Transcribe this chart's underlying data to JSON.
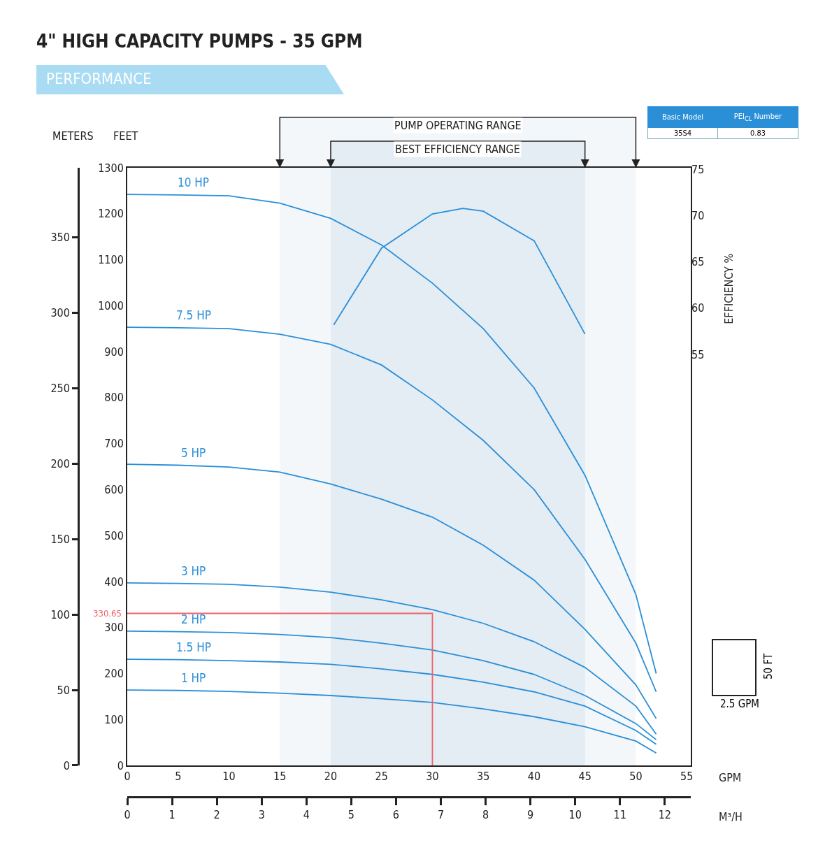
{
  "chart_data": {
    "type": "line",
    "title": "4\" HIGH CAPACITY PUMPS - 35 GPM",
    "subtitle": "PERFORMANCE",
    "xlabel": "GPM",
    "ylabel": "FEET",
    "y2label": "EFFICIENCY %",
    "y3label": "METERS",
    "x2label": "M³/H",
    "x": [
      0,
      5,
      10,
      15,
      20,
      25,
      30,
      35,
      40,
      45,
      50,
      52
    ],
    "series": [
      {
        "name": "10 HP",
        "color": "#2b8fd8",
        "values": [
          1242,
          1241,
          1239,
          1223,
          1190,
          1132,
          1049,
          950,
          821,
          631,
          372,
          200
        ]
      },
      {
        "name": "7.5 HP",
        "color": "#2b8fd8",
        "values": [
          953,
          952,
          950,
          938,
          916,
          871,
          795,
          707,
          600,
          448,
          266,
          160
        ]
      },
      {
        "name": "5 HP",
        "color": "#2b8fd8",
        "values": [
          655,
          653,
          649,
          638,
          612,
          579,
          540,
          479,
          403,
          296,
          175,
          102
        ]
      },
      {
        "name": "3 HP",
        "color": "#2b8fd8",
        "values": [
          397,
          396,
          394,
          388,
          377,
          360,
          339,
          309,
          269,
          213,
          129,
          68
        ]
      },
      {
        "name": "2 HP",
        "color": "#2b8fd8",
        "values": [
          292,
          291,
          289,
          285,
          278,
          266,
          251,
          228,
          198,
          152,
          91,
          56
        ]
      },
      {
        "name": "1.5 HP",
        "color": "#2b8fd8",
        "values": [
          231,
          230,
          228,
          225,
          220,
          210,
          198,
          181,
          160,
          129,
          76,
          46
        ]
      },
      {
        "name": "1 HP",
        "color": "#2b8fd8",
        "values": [
          164,
          163,
          161,
          157,
          152,
          145,
          137,
          123,
          106,
          84,
          53,
          27
        ]
      },
      {
        "color": "#2b8fd8",
        "axis": "y2",
        "x": [
          20.3,
          25,
          30,
          33,
          35,
          40,
          45
        ],
        "values": [
          58.2,
          66.5,
          70.2,
          70.8,
          70.5,
          67.3,
          57.2
        ]
      },
      {
        "color": "#f0606a",
        "x": [
          0,
          30,
          30
        ],
        "values": [
          330.65,
          330.65,
          0
        ]
      }
    ],
    "xlim": [
      0,
      55.4
    ],
    "xticks": [
      0,
      5,
      10,
      15,
      20,
      25,
      30,
      35,
      40,
      45,
      50,
      55
    ],
    "x2lim": [
      0,
      12.58
    ],
    "x2ticks": [
      0,
      1,
      2,
      3,
      4,
      5,
      6,
      7,
      8,
      9,
      10,
      11,
      12
    ],
    "ylim": [
      0,
      1300
    ],
    "yticks": [
      0,
      100,
      200,
      300,
      400,
      500,
      600,
      700,
      800,
      900,
      1000,
      1100,
      1200,
      1300
    ],
    "y2lim": [
      10.5,
      75.2
    ],
    "y2ticks": [
      55,
      60,
      65,
      70,
      75
    ],
    "y3lim": [
      0,
      396.2
    ],
    "y3ticks": [
      0,
      50,
      100,
      150,
      200,
      250,
      300,
      350
    ],
    "bands": [
      {
        "axis": "x",
        "from": 15,
        "to": 50,
        "label": "PUMP OPERATING RANGE",
        "color": "#f4f7fa"
      },
      {
        "axis": "x",
        "from": 20,
        "to": 45,
        "label": "BEST EFFICIENCY RANGE",
        "color": "#e4ecf4"
      }
    ],
    "annotations": [
      {
        "text": "330.65",
        "x": 0,
        "y": 330.65
      },
      "Basic Model",
      "PEI$_{CL}$ Number",
      "35S4",
      "0.83",
      "2.5 GPM",
      "50 FT"
    ],
    "grid": false,
    "marker": "none",
    "line_style": "solid"
  }
}
